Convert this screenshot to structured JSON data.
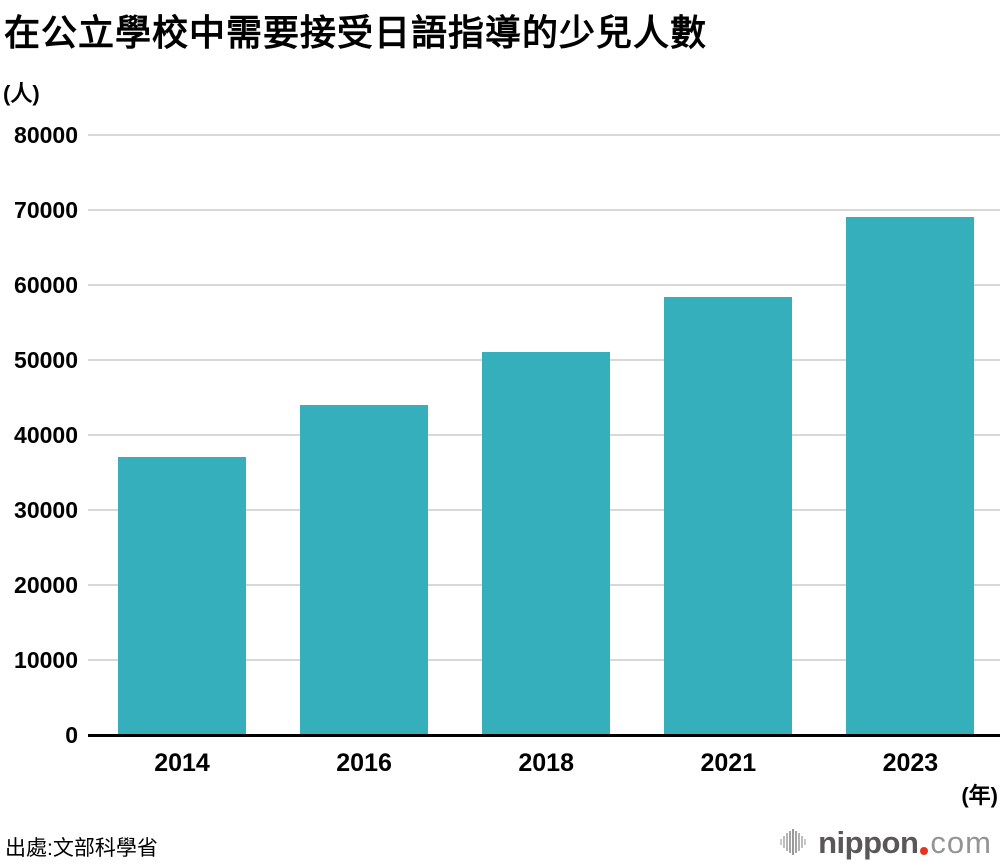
{
  "source": "出處:文部科學省",
  "colors": {
    "bar": "#35afbc",
    "gridline": "#d8d8d8",
    "axis": "#000000",
    "text": "#000000",
    "background": "#ffffff"
  },
  "logo": {
    "name": "nippon.com",
    "icon": "soundwave-bars-icon",
    "text_main": "nippon",
    "text_suffix": "com",
    "color_main": "#595757",
    "color_dot": "#e73422",
    "color_suffix": "#949494"
  },
  "chart_data": {
    "type": "bar",
    "title": "在公立學校中需要接受日語指導的少兒人數",
    "ylabel": "(人)",
    "xlabel": "(年)",
    "categories": [
      "2014",
      "2016",
      "2018",
      "2021",
      "2023"
    ],
    "values": [
      37095,
      43947,
      51126,
      58353,
      69123
    ],
    "ylim": [
      0,
      80000
    ],
    "yticks": [
      0,
      10000,
      20000,
      30000,
      40000,
      50000,
      60000,
      70000,
      80000
    ],
    "grid": "horizontal",
    "legend": "none",
    "bar_color": "#35afbc"
  }
}
